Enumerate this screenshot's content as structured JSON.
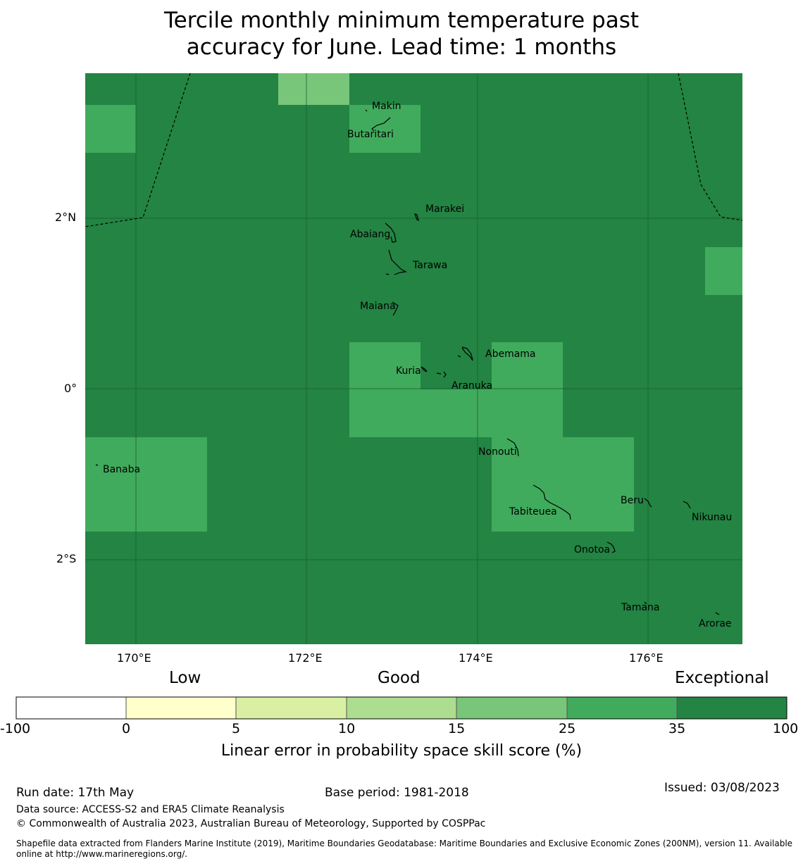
{
  "title_line1": "Tercile monthly minimum temperature past",
  "title_line2": "accuracy for June. Lead time: 1 months",
  "lat_labels": [
    "2°N",
    "0°",
    "2°S"
  ],
  "lon_labels": [
    "170°E",
    "172°E",
    "174°E",
    "176°E"
  ],
  "places": [
    "Makin",
    "Butaritari",
    "Marakei",
    "Abaiang",
    "Tarawa",
    "Maiana",
    "Abemama",
    "Kuria",
    "Aranuka",
    "Nonouti",
    "Banaba",
    "Beru",
    "Tabiteuea",
    "Nikunau",
    "Onotoa",
    "Tamana",
    "Arorae"
  ],
  "colorbar": {
    "categories": [
      "Low",
      "Good",
      "Exceptional"
    ],
    "ticks": [
      "-100",
      "0",
      "5",
      "10",
      "15",
      "25",
      "35",
      "100"
    ],
    "colors": [
      "#ffffff",
      "#ffffcc",
      "#d9f0a3",
      "#addd8e",
      "#78c679",
      "#41ab5d",
      "#238443"
    ],
    "label": "Linear error in probability space skill score (%)"
  },
  "map_colors": {
    "exceptional": "#238443",
    "very_good": "#41ab5d",
    "good": "#78c679"
  },
  "footer": {
    "run_date": "Run date: 17th May",
    "base_period": "Base period: 1981-2018",
    "issued": "Issued: 03/08/2023",
    "data_source": "Data source: ACCESS-S2 and ERA5 Climate Reanalysis",
    "copyright": "© Commonwealth of Australia 2023, Australian Bureau of Meteorology, Supported by COSPPac",
    "shapefile_line1": "Shapefile data extracted from Flanders Marine Institute (2019), Maritime Boundaries Geodatabase: Maritime Boundaries and Exclusive Economic Zones (200NM), version 11. Available",
    "shapefile_line2": "online at http://www.marineregions.org/."
  }
}
